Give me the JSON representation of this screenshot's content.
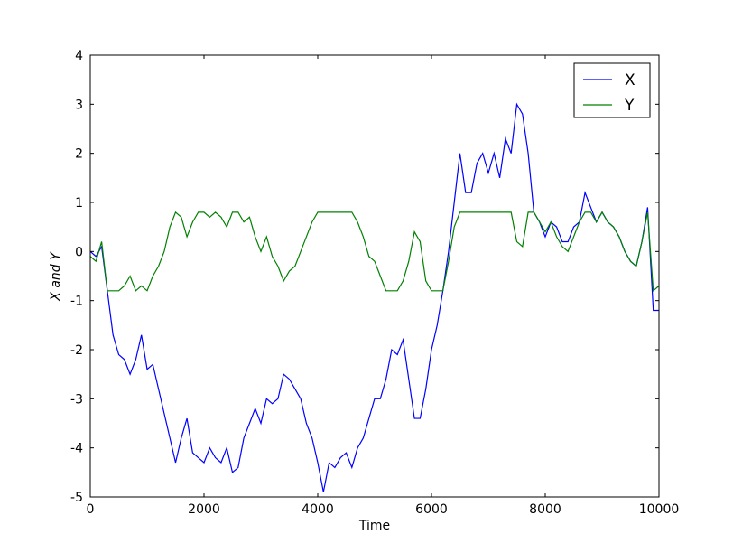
{
  "chart_data": {
    "type": "line",
    "xlabel": "Time",
    "ylabel": "X and Y",
    "xlim": [
      0,
      10000
    ],
    "xticks": [
      0,
      2000,
      4000,
      6000,
      8000,
      10000
    ],
    "ylim": [
      -5,
      4
    ],
    "yticks": [
      -5,
      -4,
      -3,
      -2,
      -1,
      0,
      1,
      2,
      3,
      4
    ],
    "legend": "upper right",
    "x": [
      0,
      100,
      200,
      300,
      400,
      500,
      600,
      700,
      800,
      900,
      1000,
      1100,
      1200,
      1300,
      1400,
      1500,
      1600,
      1700,
      1800,
      1900,
      2000,
      2100,
      2200,
      2300,
      2400,
      2500,
      2600,
      2700,
      2800,
      2900,
      3000,
      3100,
      3200,
      3300,
      3400,
      3500,
      3600,
      3700,
      3800,
      3900,
      4000,
      4100,
      4200,
      4300,
      4400,
      4500,
      4600,
      4700,
      4800,
      4900,
      5000,
      5100,
      5200,
      5300,
      5400,
      5500,
      5600,
      5700,
      5800,
      5900,
      6000,
      6100,
      6200,
      6300,
      6400,
      6500,
      6600,
      6700,
      6800,
      6900,
      7000,
      7100,
      7200,
      7300,
      7400,
      7500,
      7600,
      7700,
      7800,
      7900,
      8000,
      8100,
      8200,
      8300,
      8400,
      8500,
      8600,
      8700,
      8800,
      8900,
      9000,
      9100,
      9200,
      9300,
      9400,
      9500,
      9600,
      9700,
      9800,
      9900,
      10000
    ],
    "series": [
      {
        "name": "X",
        "color": "#0000ff",
        "values": [
          0,
          -0.1,
          0.1,
          -0.8,
          -1.7,
          -2.1,
          -2.2,
          -2.5,
          -2.2,
          -1.7,
          -2.4,
          -2.3,
          -2.8,
          -3.3,
          -3.8,
          -4.3,
          -3.8,
          -3.4,
          -4.1,
          -4.2,
          -4.3,
          -4.0,
          -4.2,
          -4.3,
          -4.0,
          -4.5,
          -4.4,
          -3.8,
          -3.5,
          -3.2,
          -3.5,
          -3.0,
          -3.1,
          -3.0,
          -2.5,
          -2.6,
          -2.8,
          -3.0,
          -3.5,
          -3.8,
          -4.3,
          -4.9,
          -4.3,
          -4.4,
          -4.2,
          -4.1,
          -4.4,
          -4.0,
          -3.8,
          -3.4,
          -3.0,
          -3.0,
          -2.6,
          -2.0,
          -2.1,
          -1.8,
          -2.6,
          -3.4,
          -3.4,
          -2.8,
          -2.0,
          -1.5,
          -0.8,
          0,
          1.0,
          2.0,
          1.2,
          1.2,
          1.8,
          2.0,
          1.6,
          2.0,
          1.5,
          2.3,
          2.0,
          3.0,
          2.8,
          2.0,
          0.8,
          0.6,
          0.3,
          0.6,
          0.5,
          0.2,
          0.2,
          0.5,
          0.6,
          1.2,
          0.9,
          0.6,
          0.8,
          0.6,
          0.5,
          0.3,
          0.0,
          -0.2,
          -0.3,
          0.2,
          0.9,
          -1.2,
          -1.2
        ]
      },
      {
        "name": "Y",
        "color": "#008000",
        "values": [
          -0.1,
          -0.2,
          0.2,
          -0.8,
          -0.8,
          -0.8,
          -0.7,
          -0.5,
          -0.8,
          -0.7,
          -0.8,
          -0.5,
          -0.3,
          0.0,
          0.5,
          0.8,
          0.7,
          0.3,
          0.6,
          0.8,
          0.8,
          0.7,
          0.8,
          0.7,
          0.5,
          0.8,
          0.8,
          0.6,
          0.7,
          0.3,
          0.0,
          0.3,
          -0.1,
          -0.3,
          -0.6,
          -0.4,
          -0.3,
          0.0,
          0.3,
          0.6,
          0.8,
          0.8,
          0.8,
          0.8,
          0.8,
          0.8,
          0.8,
          0.6,
          0.3,
          -0.1,
          -0.2,
          -0.5,
          -0.8,
          -0.8,
          -0.8,
          -0.6,
          -0.2,
          0.4,
          0.2,
          -0.6,
          -0.8,
          -0.8,
          -0.8,
          -0.2,
          0.5,
          0.8,
          0.8,
          0.8,
          0.8,
          0.8,
          0.8,
          0.8,
          0.8,
          0.8,
          0.8,
          0.2,
          0.1,
          0.8,
          0.8,
          0.6,
          0.4,
          0.6,
          0.3,
          0.1,
          0.0,
          0.3,
          0.6,
          0.8,
          0.8,
          0.6,
          0.8,
          0.6,
          0.5,
          0.3,
          0.0,
          -0.2,
          -0.3,
          0.2,
          0.8,
          -0.8,
          -0.7
        ]
      }
    ]
  }
}
